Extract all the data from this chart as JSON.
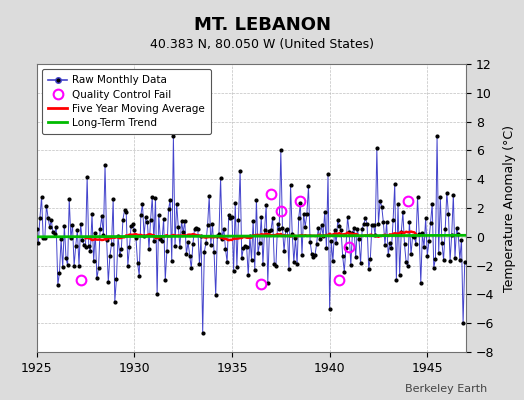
{
  "title": "MT. LEBANON",
  "subtitle": "40.383 N, 80.050 W (United States)",
  "ylabel": "Temperature Anomaly (°C)",
  "watermark": "Berkeley Earth",
  "xlim": [
    1925,
    1947
  ],
  "ylim": [
    -8,
    12
  ],
  "yticks": [
    -8,
    -6,
    -4,
    -2,
    0,
    2,
    4,
    6,
    8,
    10,
    12
  ],
  "xticks": [
    1925,
    1930,
    1935,
    1940,
    1945
  ],
  "bg_color": "#dcdcdc",
  "plot_bg_color": "#ffffff",
  "raw_color": "#4444cc",
  "raw_marker_color": "#000000",
  "ma_color": "#ff0000",
  "trend_color": "#00bb00",
  "qc_color": "#ff00ff",
  "seed": 42,
  "n_years": 22,
  "start_year": 1925,
  "ma_window": 60,
  "qc_points": [
    [
      1927.25,
      -3.0
    ],
    [
      1936.5,
      -3.3
    ],
    [
      1937.0,
      3.0
    ],
    [
      1937.5,
      1.8
    ],
    [
      1938.5,
      2.5
    ],
    [
      1940.5,
      -3.0
    ],
    [
      1941.0,
      -0.7
    ],
    [
      1944.0,
      2.5
    ]
  ]
}
